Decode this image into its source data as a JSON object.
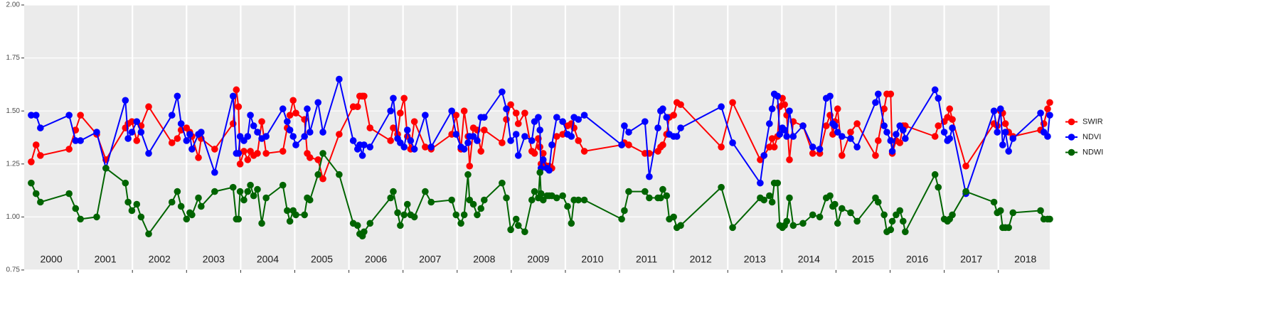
{
  "chart_data": {
    "type": "line",
    "x": [
      2000.13,
      2000.22,
      2000.3,
      2000.83,
      2000.95,
      2001.04,
      2001.34,
      2001.51,
      2001.87,
      2001.92,
      2001.99,
      2002.08,
      2002.16,
      2002.3,
      2002.73,
      2002.83,
      2002.9,
      2003.0,
      2003.06,
      2003.1,
      2003.22,
      2003.27,
      2003.52,
      2003.86,
      2003.92,
      2003.96,
      2003.99,
      2004.06,
      2004.13,
      2004.18,
      2004.24,
      2004.31,
      2004.39,
      2004.47,
      2004.78,
      2004.86,
      2004.91,
      2004.97,
      2005.02,
      2005.18,
      2005.23,
      2005.28,
      2005.43,
      2005.52,
      2005.82,
      2006.08,
      2006.16,
      2006.2,
      2006.25,
      2006.28,
      2006.39,
      2006.77,
      2006.82,
      2006.9,
      2006.95,
      2007.02,
      2007.08,
      2007.14,
      2007.21,
      2007.41,
      2007.52,
      2007.9,
      2007.98,
      2008.07,
      2008.13,
      2008.2,
      2008.23,
      2008.3,
      2008.37,
      2008.44,
      2008.5,
      2008.83,
      2008.91,
      2008.99,
      2009.09,
      2009.13,
      2009.25,
      2009.38,
      2009.43,
      2009.5,
      2009.53,
      2009.55,
      2009.59,
      2009.66,
      2009.7,
      2009.75,
      2009.84,
      2009.95,
      2010.04,
      2010.11,
      2010.16,
      2010.24,
      2010.35,
      2011.04,
      2011.09,
      2011.17,
      2011.47,
      2011.55,
      2011.71,
      2011.76,
      2011.8,
      2011.87,
      2011.92,
      2012.0,
      2012.06,
      2012.13,
      2012.88,
      2013.09,
      2013.6,
      2013.67,
      2013.77,
      2013.82,
      2013.86,
      2013.92,
      2013.96,
      2014.01,
      2014.05,
      2014.09,
      2014.14,
      2014.21,
      2014.39,
      2014.57,
      2014.7,
      2014.82,
      2014.89,
      2014.94,
      2014.98,
      2015.03,
      2015.11,
      2015.27,
      2015.39,
      2015.73,
      2015.78,
      2015.89,
      2015.94,
      2016.01,
      2016.04,
      2016.11,
      2016.18,
      2016.24,
      2016.28,
      2016.83,
      2016.89,
      2017.0,
      2017.06,
      2017.1,
      2017.15,
      2017.4,
      2017.92,
      2017.98,
      2018.04,
      2018.08,
      2018.13,
      2018.19,
      2018.27,
      2018.78,
      2018.84,
      2018.91,
      2018.95
    ],
    "series": [
      {
        "name": "SWIR",
        "color": "#ff0000",
        "values": [
          1.26,
          1.34,
          1.29,
          1.32,
          1.41,
          1.48,
          1.39,
          1.27,
          1.42,
          1.44,
          1.45,
          1.36,
          1.43,
          1.52,
          1.35,
          1.37,
          1.41,
          1.42,
          1.4,
          1.38,
          1.28,
          1.37,
          1.32,
          1.44,
          1.6,
          1.52,
          1.25,
          1.31,
          1.27,
          1.31,
          1.29,
          1.3,
          1.45,
          1.3,
          1.31,
          1.42,
          1.48,
          1.55,
          1.49,
          1.46,
          1.3,
          1.28,
          1.27,
          1.18,
          1.39,
          1.52,
          1.52,
          1.57,
          1.57,
          1.57,
          1.42,
          1.36,
          1.42,
          1.39,
          1.49,
          1.56,
          1.38,
          1.32,
          1.45,
          1.33,
          1.32,
          1.39,
          1.48,
          1.32,
          1.5,
          1.38,
          1.24,
          1.42,
          1.41,
          1.31,
          1.41,
          1.35,
          1.46,
          1.53,
          1.49,
          1.44,
          1.49,
          1.31,
          1.3,
          1.37,
          1.33,
          1.25,
          1.3,
          1.24,
          1.24,
          1.23,
          1.38,
          1.39,
          1.43,
          1.44,
          1.42,
          1.36,
          1.31,
          1.34,
          1.35,
          1.34,
          1.3,
          1.3,
          1.31,
          1.33,
          1.34,
          1.39,
          1.47,
          1.48,
          1.54,
          1.53,
          1.33,
          1.54,
          1.27,
          1.29,
          1.33,
          1.37,
          1.33,
          1.38,
          1.52,
          1.56,
          1.53,
          1.48,
          1.27,
          1.45,
          1.43,
          1.3,
          1.3,
          1.43,
          1.48,
          1.39,
          1.45,
          1.51,
          1.29,
          1.4,
          1.44,
          1.29,
          1.36,
          1.51,
          1.58,
          1.58,
          1.3,
          1.36,
          1.35,
          1.43,
          1.43,
          1.38,
          1.43,
          1.45,
          1.47,
          1.51,
          1.46,
          1.24,
          1.44,
          1.43,
          1.5,
          1.49,
          1.44,
          1.4,
          1.38,
          1.41,
          1.44,
          1.51,
          1.54
        ]
      },
      {
        "name": "NDVI",
        "color": "#0000ff",
        "values": [
          1.48,
          1.48,
          1.42,
          1.48,
          1.36,
          1.36,
          1.4,
          1.23,
          1.55,
          1.37,
          1.4,
          1.45,
          1.4,
          1.3,
          1.48,
          1.57,
          1.44,
          1.36,
          1.39,
          1.32,
          1.39,
          1.4,
          1.21,
          1.57,
          1.3,
          1.3,
          1.38,
          1.36,
          1.38,
          1.48,
          1.43,
          1.4,
          1.37,
          1.38,
          1.51,
          1.45,
          1.41,
          1.38,
          1.34,
          1.38,
          1.51,
          1.4,
          1.54,
          1.4,
          1.65,
          1.36,
          1.32,
          1.34,
          1.29,
          1.34,
          1.33,
          1.5,
          1.56,
          1.37,
          1.35,
          1.33,
          1.41,
          1.36,
          1.32,
          1.48,
          1.33,
          1.5,
          1.39,
          1.33,
          1.32,
          1.35,
          1.38,
          1.38,
          1.36,
          1.47,
          1.47,
          1.59,
          1.51,
          1.36,
          1.39,
          1.29,
          1.38,
          1.36,
          1.45,
          1.47,
          1.41,
          1.23,
          1.27,
          1.23,
          1.22,
          1.34,
          1.47,
          1.45,
          1.39,
          1.38,
          1.47,
          1.46,
          1.48,
          1.34,
          1.43,
          1.4,
          1.45,
          1.19,
          1.42,
          1.5,
          1.51,
          1.47,
          1.39,
          1.38,
          1.38,
          1.42,
          1.52,
          1.35,
          1.16,
          1.29,
          1.44,
          1.51,
          1.58,
          1.57,
          1.39,
          1.42,
          1.41,
          1.38,
          1.5,
          1.38,
          1.43,
          1.33,
          1.32,
          1.56,
          1.57,
          1.44,
          1.43,
          1.4,
          1.38,
          1.37,
          1.33,
          1.54,
          1.58,
          1.43,
          1.4,
          1.36,
          1.31,
          1.39,
          1.43,
          1.41,
          1.37,
          1.6,
          1.56,
          1.4,
          1.36,
          1.37,
          1.42,
          1.11,
          1.5,
          1.4,
          1.51,
          1.34,
          1.4,
          1.31,
          1.37,
          1.49,
          1.4,
          1.38,
          1.48
        ]
      },
      {
        "name": "NDWI",
        "color": "#006400",
        "values": [
          1.16,
          1.11,
          1.07,
          1.11,
          1.04,
          0.99,
          1.0,
          1.23,
          1.16,
          1.07,
          1.03,
          1.06,
          1.0,
          0.92,
          1.07,
          1.12,
          1.05,
          0.99,
          1.02,
          1.01,
          1.09,
          1.05,
          1.12,
          1.14,
          0.99,
          0.99,
          1.12,
          1.08,
          1.12,
          1.15,
          1.1,
          1.13,
          0.97,
          1.09,
          1.15,
          1.03,
          0.98,
          1.03,
          1.01,
          1.01,
          1.09,
          1.08,
          1.2,
          1.3,
          1.2,
          0.97,
          0.96,
          0.92,
          0.91,
          0.93,
          0.97,
          1.09,
          1.12,
          1.02,
          0.96,
          1.01,
          1.06,
          1.01,
          1.0,
          1.12,
          1.07,
          1.08,
          1.01,
          0.97,
          1.01,
          1.2,
          1.08,
          1.06,
          1.01,
          1.04,
          1.08,
          1.16,
          1.09,
          0.94,
          0.99,
          0.96,
          0.93,
          1.08,
          1.12,
          1.09,
          1.21,
          1.11,
          1.08,
          1.1,
          1.1,
          1.1,
          1.09,
          1.1,
          1.05,
          0.97,
          1.08,
          1.08,
          1.08,
          0.99,
          1.03,
          1.12,
          1.12,
          1.09,
          1.09,
          1.09,
          1.13,
          1.1,
          0.99,
          1.0,
          0.95,
          0.96,
          1.14,
          0.95,
          1.09,
          1.08,
          1.1,
          1.07,
          1.16,
          1.16,
          0.96,
          0.95,
          0.96,
          0.98,
          1.09,
          0.96,
          0.97,
          1.01,
          1.0,
          1.09,
          1.1,
          1.05,
          1.06,
          0.97,
          1.04,
          1.02,
          0.98,
          1.09,
          1.07,
          1.01,
          0.93,
          0.94,
          0.98,
          1.01,
          1.03,
          0.98,
          0.93,
          1.2,
          1.14,
          0.99,
          0.98,
          0.99,
          1.01,
          1.12,
          1.07,
          1.02,
          1.03,
          0.95,
          0.95,
          0.95,
          1.02,
          1.03,
          0.99,
          0.99,
          0.99
        ]
      }
    ],
    "xlim": [
      2000,
      2018.95
    ],
    "xticks": [
      2001,
      2002,
      2003,
      2004,
      2005,
      2006,
      2007,
      2008,
      2009,
      2010,
      2011,
      2012,
      2013,
      2014,
      2015,
      2016,
      2017,
      2018
    ],
    "ylim": [
      0.75,
      2
    ],
    "yticks": [
      {
        "value": 0.75,
        "label": "0.75"
      },
      {
        "value": 1,
        "label": "1.00"
      },
      {
        "value": 1.25,
        "label": "1.25"
      },
      {
        "value": 1.5,
        "label": "1.50"
      },
      {
        "value": 1.75,
        "label": "1.75"
      },
      {
        "value": 2,
        "label": "2.00"
      }
    ],
    "annotations": [
      {
        "x": 2000.5,
        "text": "2000"
      },
      {
        "x": 2001.5,
        "text": "2001"
      },
      {
        "x": 2002.5,
        "text": "2002"
      },
      {
        "x": 2003.5,
        "text": "2003"
      },
      {
        "x": 2004.5,
        "text": "2004"
      },
      {
        "x": 2005.5,
        "text": "2005"
      },
      {
        "x": 2006.5,
        "text": "2006"
      },
      {
        "x": 2007.5,
        "text": "2007"
      },
      {
        "x": 2008.5,
        "text": "2008"
      },
      {
        "x": 2009.5,
        "text": "2009"
      },
      {
        "x": 2010.5,
        "text": "2010"
      },
      {
        "x": 2011.5,
        "text": "2011"
      },
      {
        "x": 2012.5,
        "text": "2012"
      },
      {
        "x": 2013.5,
        "text": "2013"
      },
      {
        "x": 2014.5,
        "text": "2014"
      },
      {
        "x": 2015.5,
        "text": "2015"
      },
      {
        "x": 2016.5,
        "text": "2016"
      },
      {
        "x": 2017.5,
        "text": "2017"
      },
      {
        "x": 2018.5,
        "text": "2018"
      }
    ],
    "grid": true,
    "legend": "right"
  }
}
